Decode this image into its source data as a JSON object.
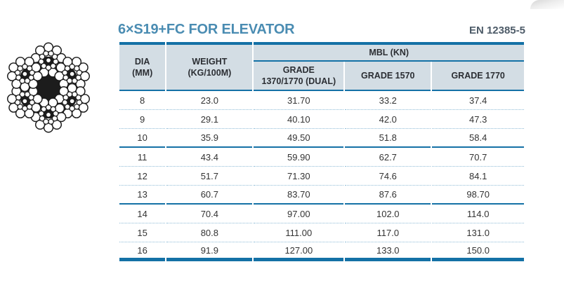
{
  "header": {
    "title": "6×S19+FC FOR ELEVATOR",
    "standard": "EN 12385-5"
  },
  "figure": {
    "icon_name": "wire-rope-cross-section",
    "strand_count": 6,
    "core": "fiber-core"
  },
  "table": {
    "header": {
      "dia": "DIA\n(MM)",
      "weight": "WEIGHT\n(KG/100M)",
      "mbl_group": "MBL (KN)",
      "grade_dual": "GRADE\n1370/1770 (DUAL)",
      "grade_1570": "GRADE 1570",
      "grade_1770": "GRADE 1770"
    },
    "rows": [
      [
        "8",
        "23.0",
        "31.70",
        "33.2",
        "37.4"
      ],
      [
        "9",
        "29.1",
        "40.10",
        "42.0",
        "47.3"
      ],
      [
        "10",
        "35.9",
        "49.50",
        "51.8",
        "58.4"
      ],
      [
        "11",
        "43.4",
        "59.90",
        "62.7",
        "70.7"
      ],
      [
        "12",
        "51.7",
        "71.30",
        "74.6",
        "84.1"
      ],
      [
        "13",
        "60.7",
        "83.70",
        "87.6",
        "98.70"
      ],
      [
        "14",
        "70.4",
        "97.00",
        "102.0",
        "114.0"
      ],
      [
        "15",
        "80.8",
        "111.00",
        "117.0",
        "131.0"
      ],
      [
        "16",
        "91.9",
        "127.00",
        "133.0",
        "150.0"
      ]
    ]
  },
  "colors": {
    "accent_blue": "#1471a6",
    "title_blue": "#4a8cb2",
    "standard_text": "#4d5b68",
    "header_bg": "#d3dde4",
    "dotted_line": "#8fbcd7"
  }
}
